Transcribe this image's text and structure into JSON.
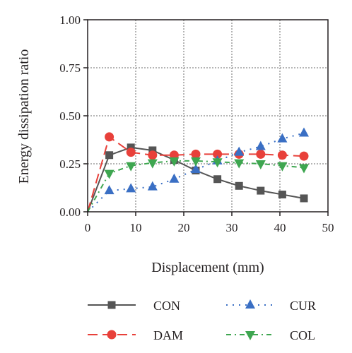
{
  "chart_data": {
    "type": "line",
    "title": "",
    "xlabel": "Displacement (mm)",
    "ylabel": "Energy dissipation ratio",
    "xlim": [
      0,
      50
    ],
    "ylim": [
      0,
      1.0
    ],
    "x_ticks": [
      "0",
      "10",
      "20",
      "30",
      "40",
      "50"
    ],
    "y_ticks": [
      "0.00",
      "0.25",
      "0.50",
      "0.75",
      "1.00"
    ],
    "grid": true,
    "legend_position": "bottom",
    "series": [
      {
        "name": "CON",
        "color": "#555555",
        "marker": "square",
        "line_style": "solid",
        "x": [
          0,
          4.5,
          9,
          13.5,
          18,
          22.5,
          27,
          31.5,
          36,
          40.5,
          45
        ],
        "y": [
          0.0,
          0.295,
          0.335,
          0.32,
          0.27,
          0.215,
          0.17,
          0.135,
          0.11,
          0.09,
          0.07
        ]
      },
      {
        "name": "DAM",
        "color": "#e8403a",
        "marker": "circle",
        "line_style": "dashed",
        "x": [
          0,
          4.5,
          9,
          13.5,
          18,
          22.5,
          27,
          31.5,
          36,
          40.5,
          45
        ],
        "y": [
          0.0,
          0.39,
          0.31,
          0.295,
          0.295,
          0.3,
          0.3,
          0.3,
          0.3,
          0.295,
          0.29
        ]
      },
      {
        "name": "CUR",
        "color": "#3a6fc4",
        "marker": "triangle-up",
        "line_style": "dotted",
        "x": [
          0,
          4.5,
          9,
          13.5,
          18,
          22.5,
          27,
          31.5,
          36,
          40.5,
          45
        ],
        "y": [
          0.0,
          0.11,
          0.12,
          0.13,
          0.17,
          0.22,
          0.265,
          0.31,
          0.34,
          0.38,
          0.41
        ]
      },
      {
        "name": "COL",
        "color": "#3ea650",
        "marker": "triangle-down",
        "line_style": "dash-dot",
        "x": [
          0,
          4.5,
          9,
          13.5,
          18,
          22.5,
          27,
          31.5,
          36,
          40.5,
          45
        ],
        "y": [
          0.0,
          0.2,
          0.24,
          0.255,
          0.265,
          0.265,
          0.26,
          0.255,
          0.25,
          0.24,
          0.23
        ]
      }
    ]
  }
}
